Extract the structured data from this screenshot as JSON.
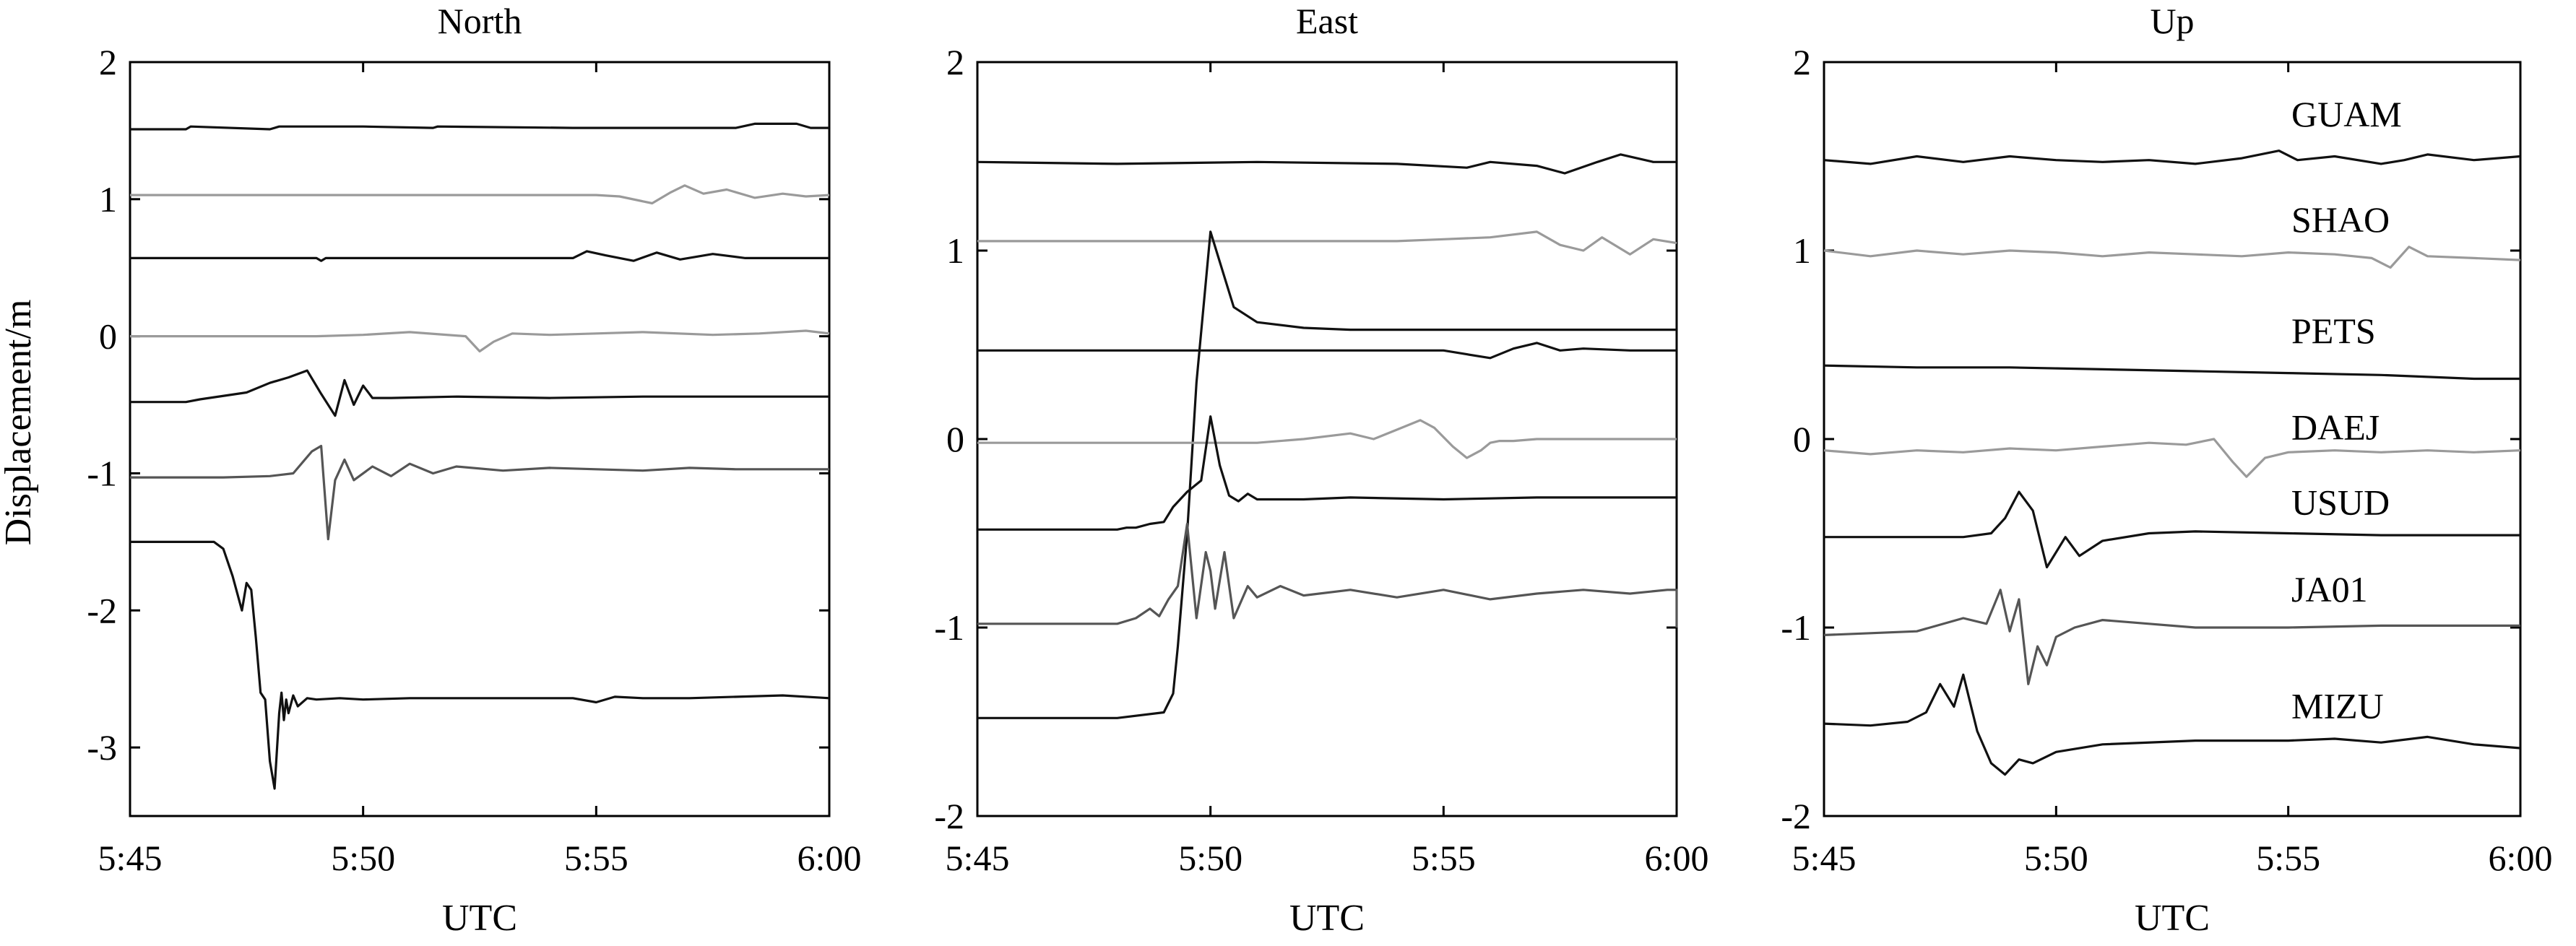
{
  "figure": {
    "shared_ylabel": "Displacement/m",
    "colors": {
      "black": "#111111",
      "dark_gray": "#555555",
      "light_gray": "#9a9a9a",
      "axis": "#000000"
    }
  },
  "chart_data": [
    {
      "type": "line",
      "title": "North",
      "xlabel": "UTC",
      "ylabel": "Displacement/m",
      "xlim": [
        0,
        15
      ],
      "ylim": [
        -3.5,
        2
      ],
      "x_unit": "minutes after 5:45 UTC",
      "xticks": [
        0,
        5,
        10,
        15
      ],
      "xtick_labels": [
        "5:45",
        "5:50",
        "5:55",
        "6:00"
      ],
      "yticks": [
        2,
        1,
        0,
        -1,
        -2,
        -3
      ],
      "ytick_labels": [
        "2",
        "1",
        "0",
        "-1",
        "-2",
        "-3"
      ],
      "series": [
        {
          "name": "GUAM",
          "color": "#111111",
          "x": [
            0,
            1.2,
            1.3,
            3.0,
            3.2,
            5.0,
            6.5,
            6.6,
            9.5,
            13.0,
            13.4,
            14.3,
            14.6,
            15.0
          ],
          "values": [
            1.51,
            1.51,
            1.53,
            1.51,
            1.53,
            1.53,
            1.52,
            1.53,
            1.52,
            1.52,
            1.55,
            1.55,
            1.52,
            1.52
          ]
        },
        {
          "name": "SHAO",
          "color": "#9a9a9a",
          "x": [
            0,
            10.0,
            10.5,
            11.2,
            11.6,
            11.9,
            12.3,
            12.8,
            13.4,
            14.0,
            14.5,
            15.0
          ],
          "values": [
            1.03,
            1.03,
            1.02,
            0.97,
            1.05,
            1.1,
            1.04,
            1.07,
            1.01,
            1.04,
            1.02,
            1.03
          ]
        },
        {
          "name": "PETS",
          "color": "#111111",
          "x": [
            0,
            4.0,
            4.1,
            4.2,
            9.5,
            9.8,
            10.2,
            10.8,
            11.3,
            11.8,
            12.5,
            13.2,
            15.0
          ],
          "values": [
            0.57,
            0.57,
            0.55,
            0.57,
            0.57,
            0.62,
            0.59,
            0.55,
            0.61,
            0.56,
            0.6,
            0.57,
            0.57
          ]
        },
        {
          "name": "DAEJ",
          "color": "#9a9a9a",
          "x": [
            0,
            2.0,
            4.0,
            5.0,
            6.0,
            7.2,
            7.5,
            7.8,
            8.2,
            9.0,
            10.0,
            11.0,
            12.5,
            13.5,
            14.5,
            15.0
          ],
          "values": [
            0.0,
            0.0,
            0.0,
            0.01,
            0.03,
            0.0,
            -0.11,
            -0.04,
            0.02,
            0.01,
            0.02,
            0.03,
            0.01,
            0.02,
            0.04,
            0.02
          ]
        },
        {
          "name": "USUD",
          "color": "#111111",
          "x": [
            0,
            1.2,
            1.5,
            2.5,
            3.0,
            3.4,
            3.8,
            4.1,
            4.4,
            4.6,
            4.8,
            5.0,
            5.2,
            5.6,
            7.0,
            9.0,
            11.0,
            15.0
          ],
          "values": [
            -0.48,
            -0.48,
            -0.46,
            -0.41,
            -0.34,
            -0.3,
            -0.25,
            -0.42,
            -0.58,
            -0.32,
            -0.5,
            -0.36,
            -0.45,
            -0.45,
            -0.44,
            -0.45,
            -0.44,
            -0.44
          ]
        },
        {
          "name": "JA01",
          "color": "#555555",
          "x": [
            0,
            2.0,
            3.0,
            3.5,
            3.9,
            4.1,
            4.25,
            4.4,
            4.6,
            4.8,
            5.2,
            5.6,
            6.0,
            6.5,
            7.0,
            8.0,
            9.0,
            10.0,
            11.0,
            12.0,
            13.0,
            14.0,
            15.0
          ],
          "values": [
            -1.03,
            -1.03,
            -1.02,
            -1.0,
            -0.84,
            -0.8,
            -1.48,
            -1.05,
            -0.9,
            -1.05,
            -0.95,
            -1.02,
            -0.93,
            -1.0,
            -0.95,
            -0.98,
            -0.96,
            -0.97,
            -0.98,
            -0.96,
            -0.97,
            -0.97,
            -0.97
          ]
        },
        {
          "name": "MIZU",
          "color": "#111111",
          "x": [
            0,
            1.8,
            2.0,
            2.2,
            2.4,
            2.5,
            2.6,
            2.7,
            2.8,
            2.9,
            3.0,
            3.1,
            3.2,
            3.25,
            3.3,
            3.35,
            3.4,
            3.5,
            3.6,
            3.8,
            4.0,
            4.5,
            5.0,
            6.0,
            8.0,
            9.5,
            10.0,
            10.4,
            11.0,
            12.0,
            14.0,
            15.0
          ],
          "values": [
            -1.5,
            -1.5,
            -1.55,
            -1.75,
            -2.0,
            -1.8,
            -1.85,
            -2.2,
            -2.6,
            -2.65,
            -3.1,
            -3.3,
            -2.75,
            -2.6,
            -2.8,
            -2.65,
            -2.75,
            -2.62,
            -2.7,
            -2.64,
            -2.65,
            -2.64,
            -2.65,
            -2.64,
            -2.64,
            -2.64,
            -2.67,
            -2.63,
            -2.64,
            -2.64,
            -2.62,
            -2.64
          ]
        }
      ]
    },
    {
      "type": "line",
      "title": "East",
      "xlabel": "UTC",
      "ylabel": "",
      "xlim": [
        0,
        15
      ],
      "ylim": [
        -2,
        2
      ],
      "x_unit": "minutes after 5:45 UTC",
      "xticks": [
        0,
        5,
        10,
        15
      ],
      "xtick_labels": [
        "5:45",
        "5:50",
        "5:55",
        "6:00"
      ],
      "yticks": [
        2,
        1,
        0,
        -1,
        -2
      ],
      "ytick_labels": [
        "2",
        "1",
        "0",
        "-1",
        "-2"
      ],
      "series": [
        {
          "name": "GUAM",
          "color": "#111111",
          "x": [
            0,
            3.0,
            6.0,
            9.0,
            10.5,
            11.0,
            12.0,
            12.6,
            13.3,
            13.8,
            14.5,
            15.0
          ],
          "values": [
            1.47,
            1.46,
            1.47,
            1.46,
            1.44,
            1.47,
            1.45,
            1.41,
            1.47,
            1.51,
            1.47,
            1.47
          ]
        },
        {
          "name": "SHAO",
          "color": "#9a9a9a",
          "x": [
            0,
            3.0,
            6.0,
            9.0,
            10.0,
            11.0,
            12.0,
            12.5,
            13.0,
            13.4,
            14.0,
            14.5,
            15.0
          ],
          "values": [
            1.05,
            1.05,
            1.05,
            1.05,
            1.06,
            1.07,
            1.1,
            1.03,
            1.0,
            1.07,
            0.98,
            1.06,
            1.04
          ]
        },
        {
          "name": "PETS",
          "color": "#111111",
          "x": [
            0,
            3.0,
            4.0,
            4.2,
            4.3,
            4.5,
            4.7,
            5.0,
            5.5,
            6.0,
            7.0,
            8.0,
            9.0,
            10.0,
            10.8,
            11.2,
            11.6,
            12.0,
            12.5,
            13.0,
            14.0,
            15.0
          ],
          "values": [
            -1.48,
            -1.48,
            -1.45,
            -1.35,
            -1.1,
            -0.5,
            0.3,
            1.1,
            0.7,
            0.62,
            0.59,
            0.58,
            0.58,
            0.58,
            0.58,
            0.58,
            0.58,
            0.58,
            0.58,
            0.58,
            0.58,
            0.58
          ]
        },
        {
          "name": "DAEJ",
          "color": "#111111",
          "x": [
            0,
            3.0,
            4.5,
            6.0,
            7.5,
            9.0,
            10.0,
            10.5,
            11.0,
            11.5,
            12.0,
            12.5,
            13.0,
            14.0,
            15.0
          ],
          "values": [
            0.47,
            0.47,
            0.47,
            0.47,
            0.47,
            0.47,
            0.47,
            0.45,
            0.43,
            0.48,
            0.51,
            0.47,
            0.48,
            0.47,
            0.47
          ]
        },
        {
          "name": "USUD",
          "color": "#9a9a9a",
          "x": [
            0,
            3.0,
            5.0,
            6.0,
            7.0,
            8.0,
            8.5,
            9.0,
            9.5,
            9.8,
            10.2,
            10.5,
            10.8,
            11.0,
            11.2,
            11.5,
            12.0,
            13.0,
            14.0,
            15.0
          ],
          "values": [
            -0.02,
            -0.02,
            -0.02,
            -0.02,
            0.0,
            0.03,
            0.0,
            0.05,
            0.1,
            0.06,
            -0.04,
            -0.1,
            -0.06,
            -0.02,
            -0.01,
            -0.01,
            0.0,
            0.0,
            0.0,
            0.0
          ]
        },
        {
          "name": "JA01",
          "color": "#111111",
          "x": [
            0,
            2.5,
            2.8,
            3.0,
            3.2,
            3.4,
            3.7,
            4.0,
            4.2,
            4.5,
            4.8,
            5.0,
            5.2,
            5.4,
            5.6,
            5.8,
            6.0,
            7.0,
            8.0,
            10.0,
            12.0,
            15.0
          ],
          "values": [
            -0.48,
            -0.48,
            -0.48,
            -0.48,
            -0.47,
            -0.47,
            -0.45,
            -0.44,
            -0.36,
            -0.28,
            -0.22,
            0.12,
            -0.14,
            -0.3,
            -0.33,
            -0.29,
            -0.32,
            -0.32,
            -0.31,
            -0.32,
            -0.31,
            -0.31
          ]
        },
        {
          "name": "MIZU",
          "color": "#555555",
          "x": [
            0,
            2.5,
            3.0,
            3.4,
            3.7,
            3.9,
            4.1,
            4.3,
            4.5,
            4.7,
            4.9,
            5.0,
            5.1,
            5.3,
            5.5,
            5.8,
            6.0,
            6.5,
            7.0,
            8.0,
            9.0,
            10.0,
            11.0,
            12.0,
            13.0,
            14.0,
            14.8,
            15.0,
            15.0
          ],
          "values": [
            -0.98,
            -0.98,
            -0.98,
            -0.95,
            -0.9,
            -0.94,
            -0.85,
            -0.78,
            -0.45,
            -0.95,
            -0.6,
            -0.7,
            -0.9,
            -0.6,
            -0.95,
            -0.78,
            -0.84,
            -0.78,
            -0.83,
            -0.8,
            -0.84,
            -0.8,
            -0.85,
            -0.82,
            -0.8,
            -0.82,
            -0.8,
            -0.8,
            -1.0
          ]
        }
      ]
    },
    {
      "type": "line",
      "title": "Up",
      "xlabel": "UTC",
      "ylabel": "",
      "xlim": [
        0,
        15
      ],
      "ylim": [
        -2,
        2
      ],
      "x_unit": "minutes after 5:45 UTC",
      "xticks": [
        0,
        5,
        10,
        15
      ],
      "xtick_labels": [
        "5:45",
        "5:50",
        "5:55",
        "6:00"
      ],
      "yticks": [
        2,
        1,
        0,
        -1,
        -2
      ],
      "ytick_labels": [
        "2",
        "1",
        "0",
        "-1",
        "-2"
      ],
      "series": [
        {
          "name": "GUAM",
          "label_y": 1.72,
          "color": "#111111",
          "x": [
            0,
            1.0,
            2.0,
            3.0,
            4.0,
            5.0,
            6.0,
            7.0,
            8.0,
            9.0,
            9.8,
            10.2,
            11.0,
            12.0,
            12.5,
            13.0,
            14.0,
            15.0
          ],
          "values": [
            1.48,
            1.46,
            1.5,
            1.47,
            1.5,
            1.48,
            1.47,
            1.48,
            1.46,
            1.49,
            1.53,
            1.48,
            1.5,
            1.46,
            1.48,
            1.51,
            1.48,
            1.5
          ]
        },
        {
          "name": "SHAO",
          "label_y": 1.16,
          "color": "#9a9a9a",
          "x": [
            0,
            1.0,
            2.0,
            3.0,
            4.0,
            5.0,
            6.0,
            7.0,
            8.0,
            9.0,
            10.0,
            11.0,
            11.8,
            12.2,
            12.6,
            13.0,
            14.0,
            15.0
          ],
          "values": [
            1.0,
            0.97,
            1.0,
            0.98,
            1.0,
            0.99,
            0.97,
            0.99,
            0.98,
            0.97,
            0.99,
            0.98,
            0.96,
            0.91,
            1.02,
            0.97,
            0.96,
            0.95
          ]
        },
        {
          "name": "PETS",
          "label_y": 0.57,
          "color": "#111111",
          "x": [
            0,
            2.0,
            4.0,
            6.0,
            8.0,
            10.0,
            12.0,
            14.0,
            15.0
          ],
          "values": [
            0.39,
            0.38,
            0.38,
            0.37,
            0.36,
            0.35,
            0.34,
            0.32,
            0.32
          ]
        },
        {
          "name": "DAEJ",
          "label_y": 0.06,
          "color": "#9a9a9a",
          "x": [
            0,
            1.0,
            2.0,
            3.0,
            4.0,
            5.0,
            6.0,
            7.0,
            7.8,
            8.4,
            8.8,
            9.1,
            9.5,
            10.0,
            11.0,
            12.0,
            13.0,
            14.0,
            15.0
          ],
          "values": [
            -0.06,
            -0.08,
            -0.06,
            -0.07,
            -0.05,
            -0.06,
            -0.04,
            -0.02,
            -0.03,
            0.0,
            -0.12,
            -0.2,
            -0.1,
            -0.07,
            -0.06,
            -0.07,
            -0.06,
            -0.07,
            -0.06
          ]
        },
        {
          "name": "USUD",
          "label_y": -0.34,
          "color": "#111111",
          "x": [
            0,
            2.0,
            3.0,
            3.6,
            3.9,
            4.2,
            4.5,
            4.8,
            5.2,
            5.5,
            6.0,
            7.0,
            8.0,
            10.0,
            12.0,
            15.0
          ],
          "values": [
            -0.52,
            -0.52,
            -0.52,
            -0.5,
            -0.42,
            -0.28,
            -0.38,
            -0.68,
            -0.52,
            -0.62,
            -0.54,
            -0.5,
            -0.49,
            -0.5,
            -0.51,
            -0.51
          ]
        },
        {
          "name": "JA01",
          "label_y": -0.8,
          "color": "#555555",
          "x": [
            0,
            1.0,
            2.0,
            3.0,
            3.5,
            3.8,
            4.0,
            4.2,
            4.4,
            4.6,
            4.8,
            5.0,
            5.4,
            6.0,
            7.0,
            8.0,
            10.0,
            12.0,
            15.0
          ],
          "values": [
            -1.04,
            -1.03,
            -1.02,
            -0.95,
            -0.98,
            -0.8,
            -1.02,
            -0.85,
            -1.3,
            -1.1,
            -1.2,
            -1.05,
            -1.0,
            -0.96,
            -0.98,
            -1.0,
            -1.0,
            -0.99,
            -0.99
          ]
        },
        {
          "name": "MIZU",
          "label_y": -1.42,
          "color": "#111111",
          "x": [
            0,
            1.0,
            1.8,
            2.2,
            2.5,
            2.8,
            3.0,
            3.3,
            3.6,
            3.9,
            4.2,
            4.5,
            5.0,
            6.0,
            8.0,
            10.0,
            11.0,
            12.0,
            13.0,
            14.0,
            15.0
          ],
          "values": [
            -1.51,
            -1.52,
            -1.5,
            -1.45,
            -1.3,
            -1.42,
            -1.25,
            -1.55,
            -1.72,
            -1.78,
            -1.7,
            -1.72,
            -1.66,
            -1.62,
            -1.6,
            -1.6,
            -1.59,
            -1.61,
            -1.58,
            -1.62,
            -1.64
          ]
        }
      ]
    }
  ]
}
